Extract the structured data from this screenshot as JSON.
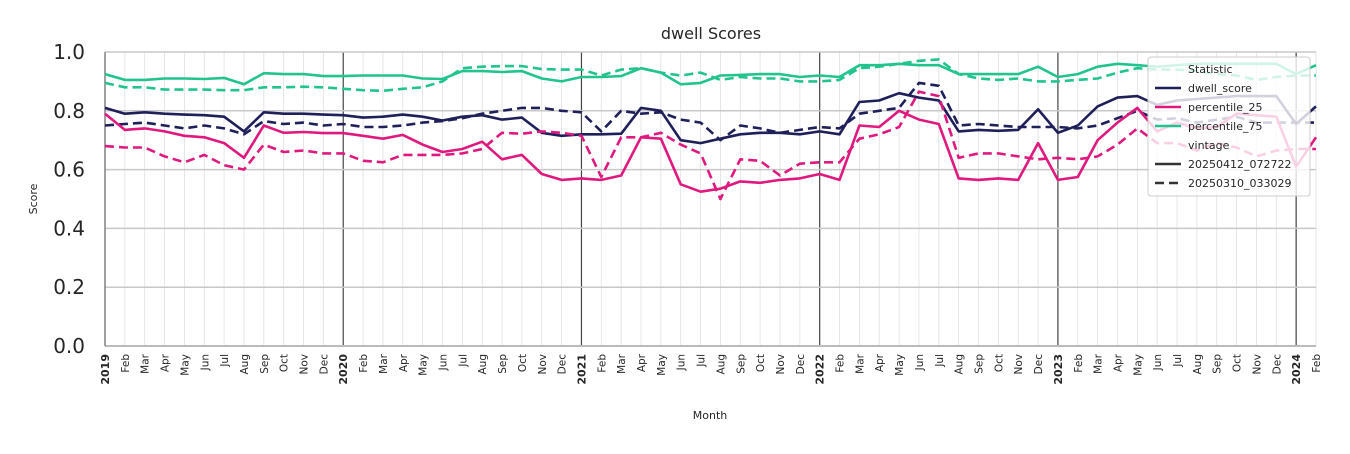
{
  "chart_data": {
    "type": "line",
    "title": "dwell Scores",
    "xlabel": "Month",
    "ylabel": "Score",
    "ylim": [
      0.0,
      1.0
    ],
    "yticks": [
      "0.0",
      "0.2",
      "0.4",
      "0.6",
      "0.8",
      "1.0"
    ],
    "grid": true,
    "legend_placement": "top-right",
    "x_range": [
      "2019-01",
      "2024-02"
    ],
    "x_tick_labels": [
      "2019",
      "Feb",
      "Mar",
      "Apr",
      "May",
      "Jun",
      "Jul",
      "Aug",
      "Sep",
      "Oct",
      "Nov",
      "Dec",
      "2020",
      "Feb",
      "Mar",
      "Apr",
      "May",
      "Jun",
      "Jul",
      "Aug",
      "Sep",
      "Oct",
      "Nov",
      "Dec",
      "2021",
      "Feb",
      "Mar",
      "Apr",
      "May",
      "Jun",
      "Jul",
      "Aug",
      "Sep",
      "Oct",
      "Nov",
      "Dec",
      "2022",
      "Feb",
      "Mar",
      "Apr",
      "May",
      "Jun",
      "Jul",
      "Aug",
      "Sep",
      "Oct",
      "Nov",
      "Dec",
      "2023",
      "Feb",
      "Mar",
      "Apr",
      "May",
      "Jun",
      "Jul",
      "Aug",
      "Sep",
      "Oct",
      "Nov",
      "Dec",
      "2024",
      "Feb"
    ],
    "legend": {
      "title": "Statistic",
      "statistics": [
        {
          "name": "dwell_score",
          "color": "#1f1f5a"
        },
        {
          "name": "percentile_25",
          "color": "#e0197f"
        },
        {
          "name": "percentile_75",
          "color": "#22c38e"
        }
      ],
      "vintage_title": "vintage",
      "vintages": [
        {
          "name": "20250412_072722",
          "style": "solid"
        },
        {
          "name": "20250310_033029",
          "style": "dashed"
        }
      ]
    },
    "series": [
      {
        "statistic": "dwell_score",
        "vintage": "20250412_072722",
        "values": [
          0.81,
          0.79,
          0.795,
          0.79,
          0.787,
          0.785,
          0.78,
          0.73,
          0.795,
          0.79,
          0.79,
          0.787,
          0.785,
          0.777,
          0.78,
          0.787,
          0.78,
          0.767,
          0.78,
          0.785,
          0.77,
          0.777,
          0.725,
          0.715,
          0.72,
          0.72,
          0.722,
          0.81,
          0.8,
          0.7,
          0.69,
          0.705,
          0.72,
          0.725,
          0.725,
          0.72,
          0.73,
          0.72,
          0.83,
          0.835,
          0.86,
          0.845,
          0.835,
          0.73,
          0.735,
          0.732,
          0.735,
          0.805,
          0.725,
          0.75,
          0.815,
          0.845,
          0.85,
          0.82,
          0.835,
          0.84,
          0.845,
          0.85,
          0.85,
          0.85,
          0.755,
          0.815
        ]
      },
      {
        "statistic": "dwell_score",
        "vintage": "20250310_033029",
        "values": [
          0.75,
          0.755,
          0.76,
          0.75,
          0.74,
          0.75,
          0.74,
          0.72,
          0.765,
          0.755,
          0.76,
          0.75,
          0.755,
          0.745,
          0.745,
          0.75,
          0.76,
          0.765,
          0.775,
          0.79,
          0.8,
          0.81,
          0.81,
          0.8,
          0.795,
          0.73,
          0.8,
          0.79,
          0.795,
          0.77,
          0.76,
          0.7,
          0.75,
          0.74,
          0.725,
          0.735,
          0.745,
          0.74,
          0.79,
          0.8,
          0.81,
          0.895,
          0.885,
          0.75,
          0.755,
          0.75,
          0.745,
          0.745,
          0.745,
          0.74,
          0.75,
          0.775,
          0.8,
          0.77,
          0.775,
          0.76,
          0.77,
          0.78,
          0.76,
          0.76,
          0.76,
          0.76
        ]
      },
      {
        "statistic": "percentile_25",
        "vintage": "20250412_072722",
        "values": [
          0.79,
          0.735,
          0.74,
          0.73,
          0.715,
          0.71,
          0.69,
          0.64,
          0.75,
          0.725,
          0.728,
          0.724,
          0.724,
          0.715,
          0.705,
          0.718,
          0.685,
          0.66,
          0.67,
          0.695,
          0.635,
          0.65,
          0.585,
          0.565,
          0.57,
          0.565,
          0.58,
          0.71,
          0.705,
          0.55,
          0.525,
          0.535,
          0.56,
          0.555,
          0.565,
          0.57,
          0.585,
          0.565,
          0.75,
          0.745,
          0.8,
          0.77,
          0.755,
          0.57,
          0.565,
          0.57,
          0.565,
          0.69,
          0.565,
          0.575,
          0.7,
          0.76,
          0.81,
          0.73,
          0.76,
          0.74,
          0.745,
          0.79,
          0.785,
          0.78,
          0.61,
          0.71
        ]
      },
      {
        "statistic": "percentile_25",
        "vintage": "20250310_033029",
        "values": [
          0.68,
          0.675,
          0.675,
          0.645,
          0.625,
          0.65,
          0.615,
          0.6,
          0.685,
          0.66,
          0.665,
          0.655,
          0.655,
          0.63,
          0.625,
          0.65,
          0.65,
          0.65,
          0.655,
          0.67,
          0.725,
          0.722,
          0.73,
          0.725,
          0.715,
          0.575,
          0.71,
          0.71,
          0.725,
          0.685,
          0.655,
          0.5,
          0.635,
          0.63,
          0.58,
          0.62,
          0.625,
          0.625,
          0.705,
          0.72,
          0.745,
          0.865,
          0.85,
          0.64,
          0.655,
          0.655,
          0.645,
          0.635,
          0.64,
          0.635,
          0.645,
          0.685,
          0.74,
          0.69,
          0.69,
          0.665,
          0.69,
          0.675,
          0.645,
          0.665,
          0.67,
          0.67
        ]
      },
      {
        "statistic": "percentile_75",
        "vintage": "20250412_072722",
        "values": [
          0.925,
          0.905,
          0.905,
          0.91,
          0.91,
          0.908,
          0.912,
          0.89,
          0.928,
          0.925,
          0.925,
          0.918,
          0.918,
          0.92,
          0.92,
          0.92,
          0.91,
          0.908,
          0.935,
          0.935,
          0.932,
          0.935,
          0.91,
          0.9,
          0.915,
          0.915,
          0.918,
          0.945,
          0.93,
          0.89,
          0.895,
          0.92,
          0.922,
          0.925,
          0.925,
          0.915,
          0.92,
          0.915,
          0.955,
          0.955,
          0.96,
          0.955,
          0.955,
          0.925,
          0.925,
          0.925,
          0.925,
          0.95,
          0.915,
          0.925,
          0.95,
          0.96,
          0.955,
          0.95,
          0.955,
          0.96,
          0.96,
          0.96,
          0.96,
          0.96,
          0.925,
          0.955
        ]
      },
      {
        "statistic": "percentile_75",
        "vintage": "20250310_033029",
        "values": [
          0.895,
          0.88,
          0.88,
          0.872,
          0.872,
          0.872,
          0.87,
          0.87,
          0.88,
          0.88,
          0.882,
          0.88,
          0.875,
          0.87,
          0.868,
          0.875,
          0.88,
          0.9,
          0.945,
          0.95,
          0.952,
          0.952,
          0.942,
          0.94,
          0.94,
          0.92,
          0.94,
          0.945,
          0.93,
          0.92,
          0.93,
          0.905,
          0.915,
          0.91,
          0.91,
          0.9,
          0.9,
          0.905,
          0.945,
          0.95,
          0.96,
          0.97,
          0.975,
          0.925,
          0.91,
          0.905,
          0.91,
          0.9,
          0.9,
          0.905,
          0.91,
          0.93,
          0.945,
          0.94,
          0.94,
          0.935,
          0.925,
          0.92,
          0.905,
          0.915,
          0.92,
          0.92
        ]
      }
    ]
  }
}
